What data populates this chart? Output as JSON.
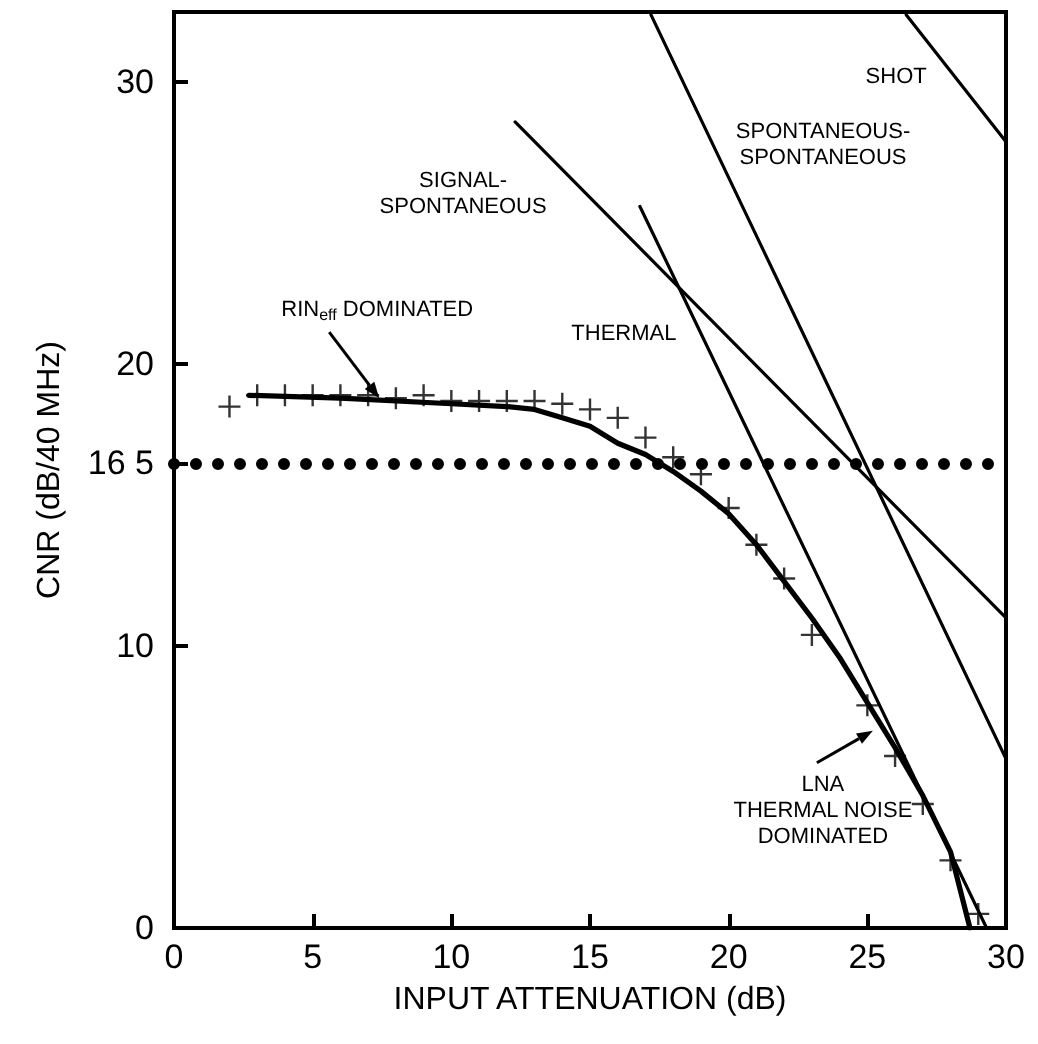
{
  "chart_data": {
    "type": "line",
    "xlabel": "INPUT ATTENUATION (dB)",
    "ylabel": "CNR (dB/40 MHz)",
    "xlim": [
      0,
      30
    ],
    "xticks": [
      0,
      5,
      10,
      15,
      20,
      25,
      30
    ],
    "ylim": [
      0,
      32.5
    ],
    "yticks": [
      0,
      10,
      {
        "value": 16.5,
        "label": "16 5"
      },
      20,
      30
    ],
    "grid": false,
    "legend": false,
    "series": [
      {
        "type": "scatter",
        "marker": "cross",
        "color": "#000000",
        "x": [
          2,
          3,
          4,
          5,
          6,
          7,
          8,
          9,
          10,
          11,
          12,
          13,
          14,
          15,
          16,
          17,
          18,
          19,
          20,
          21,
          22,
          23,
          25,
          26,
          27,
          28,
          29
        ],
        "values": [
          18.5,
          18.9,
          18.9,
          18.9,
          18.9,
          18.9,
          18.8,
          18.9,
          18.7,
          18.7,
          18.7,
          18.7,
          18.6,
          18.4,
          18.1,
          17.4,
          16.7,
          16.1,
          14.9,
          13.6,
          12.4,
          10.4,
          7.9,
          6.1,
          4.4,
          2.4,
          0.5
        ]
      },
      {
        "type": "line",
        "marker": "none",
        "color": "#000000",
        "x": [
          2.7,
          6,
          10,
          12,
          13,
          14,
          15,
          16,
          17,
          18,
          19,
          20,
          21,
          22,
          23,
          24,
          25,
          26,
          27,
          28,
          28.7
        ],
        "values": [
          18.9,
          18.8,
          18.6,
          18.5,
          18.4,
          18.1,
          17.8,
          17.2,
          16.8,
          16.2,
          15.5,
          14.7,
          13.6,
          12.3,
          11.0,
          9.6,
          8.0,
          6.4,
          4.7,
          2.7,
          0
        ]
      },
      {
        "type": "line",
        "marker": "none",
        "name": "SIGNAL-\nSPONTANEOUS",
        "color": "#000000",
        "x": [
          12.3,
          30
        ],
        "values": [
          28.6,
          11.0
        ]
      },
      {
        "type": "line",
        "marker": "none",
        "name": "THERMAL",
        "color": "#000000",
        "x": [
          16.8,
          29.3
        ],
        "values": [
          25.6,
          0
        ]
      },
      {
        "type": "line",
        "marker": "none",
        "name": "SPONTANEOUS-\nSPONTANEOUS",
        "color": "#000000",
        "x": [
          17.2,
          30
        ],
        "values": [
          32.4,
          6.0
        ]
      },
      {
        "type": "line",
        "marker": "none",
        "name": "SHOT",
        "color": "#000000",
        "x": [
          26.4,
          30
        ],
        "values": [
          32.4,
          27.9
        ]
      }
    ],
    "ref_lines": [
      {
        "axis": "y",
        "value": 16.5,
        "line_style": "dotted",
        "color": "#000000"
      }
    ],
    "annotations": [
      {
        "text": "RIN$_{eff}$ DOMINATED",
        "x": 7.4,
        "y": 18.8
      },
      {
        "text": "LNA\nTHERMAL NOISE\nDOMINATED",
        "x": 25.2,
        "y": 7.0
      }
    ]
  }
}
